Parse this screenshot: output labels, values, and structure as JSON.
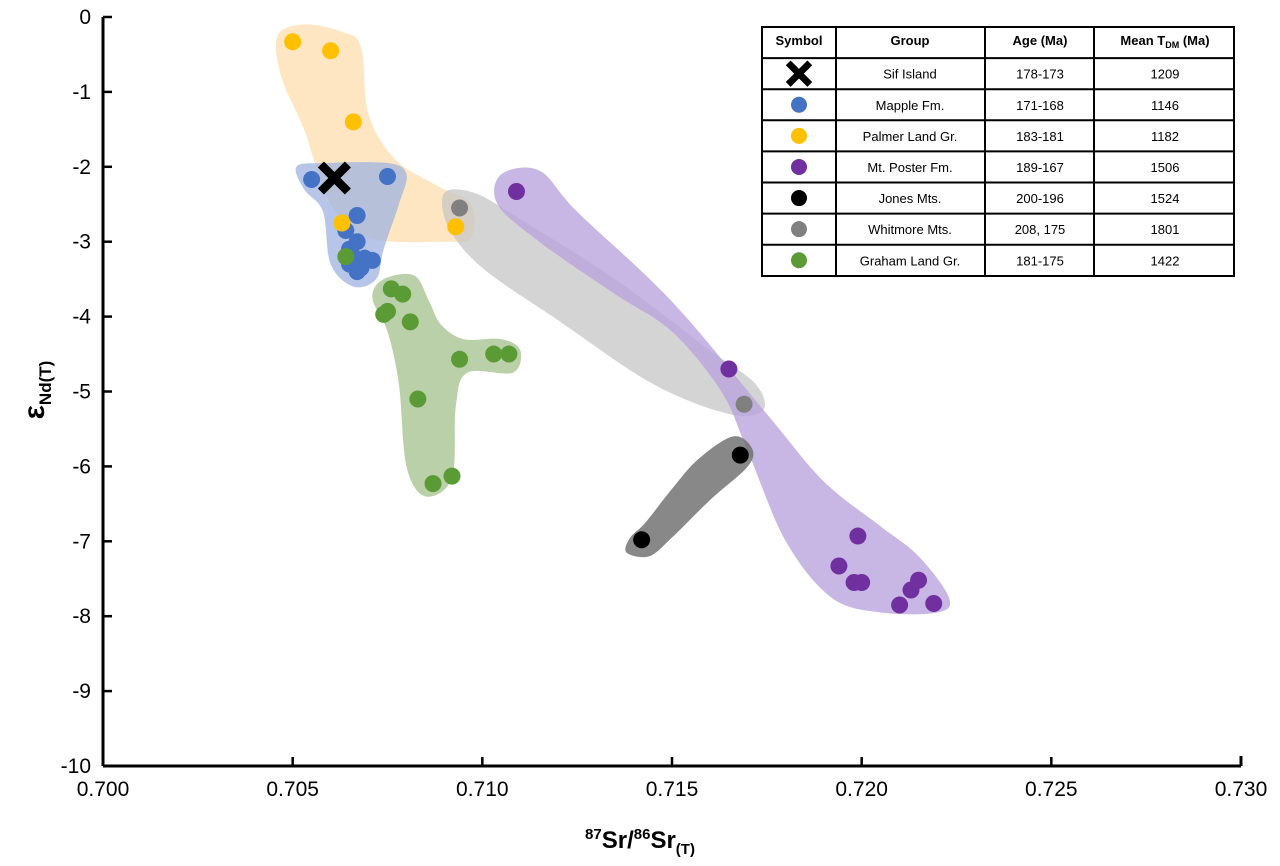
{
  "chart_data": {
    "type": "scatter",
    "xlabel": {
      "sup1": "87",
      "t1": "Sr/",
      "sup2": "86",
      "t2": "Sr",
      "sub": "(T)"
    },
    "ylabel": {
      "main": "ε",
      "sub": "Nd(T)"
    },
    "xlim": [
      0.7,
      0.73
    ],
    "ylim": [
      -10,
      0
    ],
    "x_ticks": [
      "0.700",
      "0.705",
      "0.710",
      "0.715",
      "0.720",
      "0.725",
      "0.730"
    ],
    "y_ticks": [
      "0",
      "-1",
      "-2",
      "-3",
      "-4",
      "-5",
      "-6",
      "-7",
      "-8",
      "-9",
      "-10"
    ],
    "grid": false,
    "legend_position": "top-right",
    "legend_table": {
      "headers": [
        "Symbol",
        "Group",
        "Age (Ma)",
        "Mean T",
        "DM",
        " (Ma)"
      ],
      "rows": [
        {
          "group": "Sif Island",
          "age": "178-173",
          "tdm": "1209"
        },
        {
          "group": "Mapple Fm.",
          "age": "171-168",
          "tdm": "1146"
        },
        {
          "group": "Palmer Land Gr.",
          "age": "183-181",
          "tdm": "1182"
        },
        {
          "group": "Mt. Poster Fm.",
          "age": "189-167",
          "tdm": "1506"
        },
        {
          "group": "Jones Mts.",
          "age": "200-196",
          "tdm": "1524"
        },
        {
          "group": "Whitmore Mts.",
          "age": "208, 175",
          "tdm": "1801"
        },
        {
          "group": "Graham Land Gr.",
          "age": "181-175",
          "tdm": "1422"
        }
      ]
    },
    "series": [
      {
        "name": "Sif Island",
        "marker": "x",
        "color": "#000000",
        "points": [
          [
            0.7061,
            -2.15
          ]
        ]
      },
      {
        "name": "Mapple Fm.",
        "marker": "circle",
        "color": "#4472c4",
        "fill": "#9fb3e0",
        "points": [
          [
            0.7055,
            -2.17
          ],
          [
            0.7075,
            -2.13
          ],
          [
            0.7067,
            -2.65
          ],
          [
            0.7064,
            -2.85
          ],
          [
            0.7067,
            -3.0
          ],
          [
            0.7065,
            -3.1
          ],
          [
            0.7066,
            -3.2
          ],
          [
            0.7069,
            -3.22
          ],
          [
            0.7071,
            -3.25
          ],
          [
            0.7065,
            -3.3
          ],
          [
            0.7068,
            -3.35
          ],
          [
            0.7067,
            -3.4
          ]
        ]
      },
      {
        "name": "Palmer Land Gr.",
        "marker": "circle",
        "color": "#ffc000",
        "fill": "#fde0ad",
        "points": [
          [
            0.705,
            -0.33
          ],
          [
            0.706,
            -0.45
          ],
          [
            0.7066,
            -1.4
          ],
          [
            0.7063,
            -2.75
          ],
          [
            0.7093,
            -2.8
          ]
        ]
      },
      {
        "name": "Mt. Poster Fm.",
        "marker": "circle",
        "color": "#7030a0",
        "fill": "#c4b2e0",
        "points": [
          [
            0.7109,
            -2.33
          ],
          [
            0.7165,
            -4.7
          ],
          [
            0.7199,
            -6.93
          ],
          [
            0.7194,
            -7.33
          ],
          [
            0.7198,
            -7.55
          ],
          [
            0.72,
            -7.55
          ],
          [
            0.7215,
            -7.52
          ],
          [
            0.7213,
            -7.65
          ],
          [
            0.721,
            -7.85
          ],
          [
            0.7219,
            -7.83
          ]
        ]
      },
      {
        "name": "Jones Mts.",
        "marker": "circle",
        "color": "#000000",
        "fill": "#7f7f7f",
        "points": [
          [
            0.7142,
            -6.98
          ],
          [
            0.7168,
            -5.85
          ]
        ]
      },
      {
        "name": "Whitmore Mts.",
        "marker": "circle",
        "color": "#808080",
        "fill": "#cfcfcf",
        "points": [
          [
            0.7094,
            -2.55
          ],
          [
            0.7169,
            -5.17
          ]
        ]
      },
      {
        "name": "Graham Land Gr.",
        "marker": "circle",
        "color": "#5b9b35",
        "fill": "#aec79a",
        "points": [
          [
            0.7064,
            -3.2
          ],
          [
            0.7076,
            -3.63
          ],
          [
            0.7079,
            -3.7
          ],
          [
            0.7075,
            -3.93
          ],
          [
            0.7074,
            -3.97
          ],
          [
            0.7081,
            -4.07
          ],
          [
            0.7094,
            -4.57
          ],
          [
            0.7103,
            -4.5
          ],
          [
            0.7107,
            -4.5
          ],
          [
            0.7083,
            -5.1
          ],
          [
            0.7092,
            -6.13
          ],
          [
            0.7087,
            -6.23
          ]
        ]
      }
    ],
    "fields": [
      {
        "series": "Palmer Land Gr.",
        "color": "#fcdba6",
        "opacity": 0.7,
        "outline": [
          [
            0.7046,
            -0.25
          ],
          [
            0.7053,
            -0.1
          ],
          [
            0.7063,
            -0.2
          ],
          [
            0.7068,
            -0.4
          ],
          [
            0.707,
            -1.3
          ],
          [
            0.7077,
            -1.9
          ],
          [
            0.7088,
            -2.25
          ],
          [
            0.7097,
            -2.5
          ],
          [
            0.7097,
            -2.95
          ],
          [
            0.709,
            -3.0
          ],
          [
            0.707,
            -2.95
          ],
          [
            0.706,
            -2.5
          ],
          [
            0.7053,
            -1.5
          ],
          [
            0.7047,
            -0.8
          ]
        ]
      },
      {
        "series": "Mapple Fm.",
        "color": "#9fb3e0",
        "opacity": 0.75,
        "outline": [
          [
            0.7051,
            -2.0
          ],
          [
            0.7058,
            -1.95
          ],
          [
            0.7075,
            -1.95
          ],
          [
            0.708,
            -2.1
          ],
          [
            0.7078,
            -2.5
          ],
          [
            0.7074,
            -3.1
          ],
          [
            0.7072,
            -3.5
          ],
          [
            0.7066,
            -3.6
          ],
          [
            0.706,
            -3.3
          ],
          [
            0.7058,
            -2.6
          ],
          [
            0.7053,
            -2.3
          ]
        ]
      },
      {
        "series": "Whitmore Mts.",
        "color": "#c6c6c6",
        "opacity": 0.75,
        "outline": [
          [
            0.709,
            -2.35
          ],
          [
            0.7098,
            -2.35
          ],
          [
            0.711,
            -2.7
          ],
          [
            0.7135,
            -3.5
          ],
          [
            0.716,
            -4.45
          ],
          [
            0.7172,
            -4.9
          ],
          [
            0.7174,
            -5.25
          ],
          [
            0.7165,
            -5.3
          ],
          [
            0.7145,
            -4.9
          ],
          [
            0.712,
            -4.05
          ],
          [
            0.71,
            -3.35
          ],
          [
            0.7091,
            -2.8
          ]
        ]
      },
      {
        "series": "Mt. Poster Fm.",
        "color": "#b8a3dc",
        "opacity": 0.78,
        "outline": [
          [
            0.7105,
            -2.1
          ],
          [
            0.7115,
            -2.05
          ],
          [
            0.7125,
            -2.6
          ],
          [
            0.715,
            -3.8
          ],
          [
            0.7175,
            -5.3
          ],
          [
            0.719,
            -6.2
          ],
          [
            0.7205,
            -6.8
          ],
          [
            0.7215,
            -7.2
          ],
          [
            0.7223,
            -7.75
          ],
          [
            0.722,
            -7.95
          ],
          [
            0.7205,
            -7.95
          ],
          [
            0.7192,
            -7.75
          ],
          [
            0.718,
            -7.0
          ],
          [
            0.717,
            -5.8
          ],
          [
            0.7163,
            -5.0
          ],
          [
            0.715,
            -4.2
          ],
          [
            0.7135,
            -3.7
          ],
          [
            0.7115,
            -3.0
          ],
          [
            0.7104,
            -2.5
          ]
        ]
      },
      {
        "series": "Jones Mts.",
        "color": "#6e6e6e",
        "opacity": 0.82,
        "outline": [
          [
            0.7139,
            -6.95
          ],
          [
            0.7143,
            -6.75
          ],
          [
            0.715,
            -6.3
          ],
          [
            0.7157,
            -5.9
          ],
          [
            0.7166,
            -5.6
          ],
          [
            0.7171,
            -5.75
          ],
          [
            0.717,
            -6.0
          ],
          [
            0.716,
            -6.45
          ],
          [
            0.715,
            -6.95
          ],
          [
            0.7144,
            -7.2
          ],
          [
            0.7138,
            -7.15
          ]
        ]
      },
      {
        "series": "Graham Land Gr.",
        "color": "#a3c08c",
        "opacity": 0.75,
        "outline": [
          [
            0.7071,
            -3.75
          ],
          [
            0.7074,
            -3.5
          ],
          [
            0.7082,
            -3.45
          ],
          [
            0.7086,
            -3.8
          ],
          [
            0.7089,
            -4.1
          ],
          [
            0.7095,
            -4.3
          ],
          [
            0.7105,
            -4.3
          ],
          [
            0.711,
            -4.45
          ],
          [
            0.7108,
            -4.75
          ],
          [
            0.7096,
            -4.75
          ],
          [
            0.7093,
            -5.2
          ],
          [
            0.7092,
            -6.15
          ],
          [
            0.7085,
            -6.4
          ],
          [
            0.708,
            -6.0
          ],
          [
            0.7078,
            -4.9
          ],
          [
            0.7075,
            -4.2
          ]
        ]
      }
    ]
  }
}
